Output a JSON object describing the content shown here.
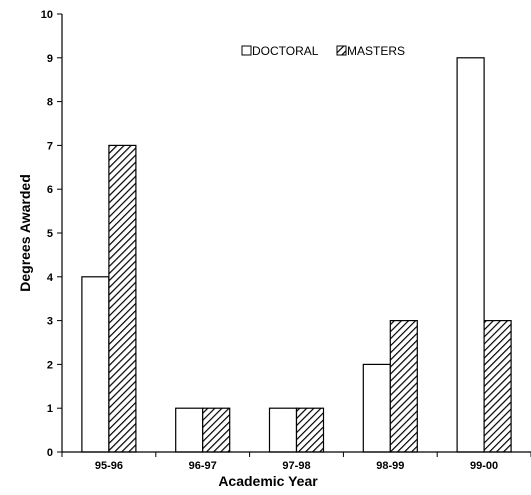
{
  "chart_data": {
    "type": "bar",
    "title": "",
    "xlabel": "Academic Year",
    "ylabel": "Degrees Awarded",
    "categories": [
      "95-96",
      "96-97",
      "97-98",
      "98-99",
      "99-00"
    ],
    "series": [
      {
        "name": "DOCTORAL",
        "values": [
          4,
          1,
          1,
          2,
          9
        ],
        "fill": "#ffffff"
      },
      {
        "name": "MASTERS",
        "values": [
          7,
          1,
          1,
          3,
          3
        ],
        "fill": "hatched"
      }
    ],
    "ylim": [
      0,
      10
    ],
    "yticks": [
      0,
      1,
      2,
      3,
      4,
      5,
      6,
      7,
      8,
      9,
      10
    ],
    "grid": false,
    "legend": "top-center"
  }
}
